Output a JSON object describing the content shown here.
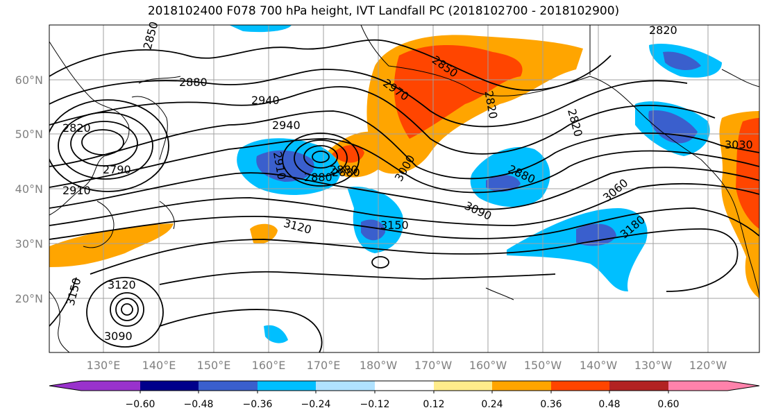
{
  "title": "2018102400 F078 700 hPa height, IVT Landfall PC (2018102700 - 2018102900)",
  "map": {
    "lat_labels": [
      "60°N",
      "50°N",
      "40°N",
      "30°N",
      "20°N"
    ],
    "lon_labels": [
      "130°E",
      "140°E",
      "150°E",
      "160°E",
      "170°E",
      "180°W",
      "170°W",
      "160°W",
      "150°W",
      "140°W",
      "130°W",
      "120°W"
    ],
    "contour_labels": [
      "2850",
      "2880",
      "2940",
      "2940",
      "2820",
      "2790",
      "2910",
      "2910",
      "2880",
      "2880",
      "2970",
      "2850",
      "2820",
      "2880",
      "2820",
      "3000",
      "3030",
      "3060",
      "2880",
      "3090",
      "3120",
      "3150",
      "3180",
      "3150",
      "3120",
      "3090",
      "2820"
    ],
    "colors": {
      "ocean": "#ffffff",
      "grid": "#a0a0a0",
      "contour": "#000000"
    }
  },
  "colorbar": {
    "ticks": [
      "−0.60",
      "−0.48",
      "−0.36",
      "−0.24",
      "−0.12",
      "0.12",
      "0.24",
      "0.36",
      "0.48",
      "0.60"
    ],
    "colors": [
      "#9932cc",
      "#00008b",
      "#3a5fcd",
      "#00bfff",
      "#b0e2ff",
      "#ffffff",
      "#ffec8b",
      "#ffa500",
      "#ff4500",
      "#b22222",
      "#ff82ab"
    ]
  }
}
